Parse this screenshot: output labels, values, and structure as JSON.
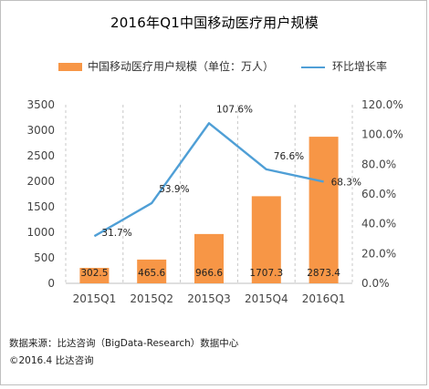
{
  "chart_data": {
    "type": "bar+line",
    "title": "2016年Q1中国移动医疗用户规模",
    "categories": [
      "2015Q1",
      "2015Q2",
      "2015Q3",
      "2015Q4",
      "2016Q1"
    ],
    "series": [
      {
        "name": "中国移动医疗用户规模（单位：万人）",
        "type": "bar",
        "axis": "left",
        "values": [
          302.5,
          465.6,
          966.6,
          1707.3,
          2873.4
        ],
        "labels": [
          "302.5",
          "465.6",
          "966.6",
          "1707.3",
          "2873.4"
        ]
      },
      {
        "name": "环比增长率",
        "type": "line",
        "axis": "right",
        "values": [
          31.7,
          53.9,
          107.6,
          76.6,
          68.3
        ],
        "labels": [
          "31.7%",
          "53.9%",
          "107.6%",
          "76.6%",
          "68.3%"
        ]
      }
    ],
    "y_left": {
      "range": [
        0,
        3500
      ],
      "ticks": [
        "0",
        "500",
        "1000",
        "1500",
        "2000",
        "2500",
        "3000",
        "3500"
      ]
    },
    "y_right": {
      "range": [
        0,
        120
      ],
      "ticks": [
        "0.0%",
        "20.0%",
        "40.0%",
        "60.0%",
        "80.0%",
        "100.0%",
        "120.0%"
      ]
    },
    "grid": "vertical-dashed",
    "legend": "top",
    "colors": {
      "bar": "#f79646",
      "line": "#4f9fd6"
    }
  },
  "footer": {
    "source": "数据来源：比达咨询（BigData-Research）数据中心",
    "copyright": "©2016.4  比达咨询"
  }
}
